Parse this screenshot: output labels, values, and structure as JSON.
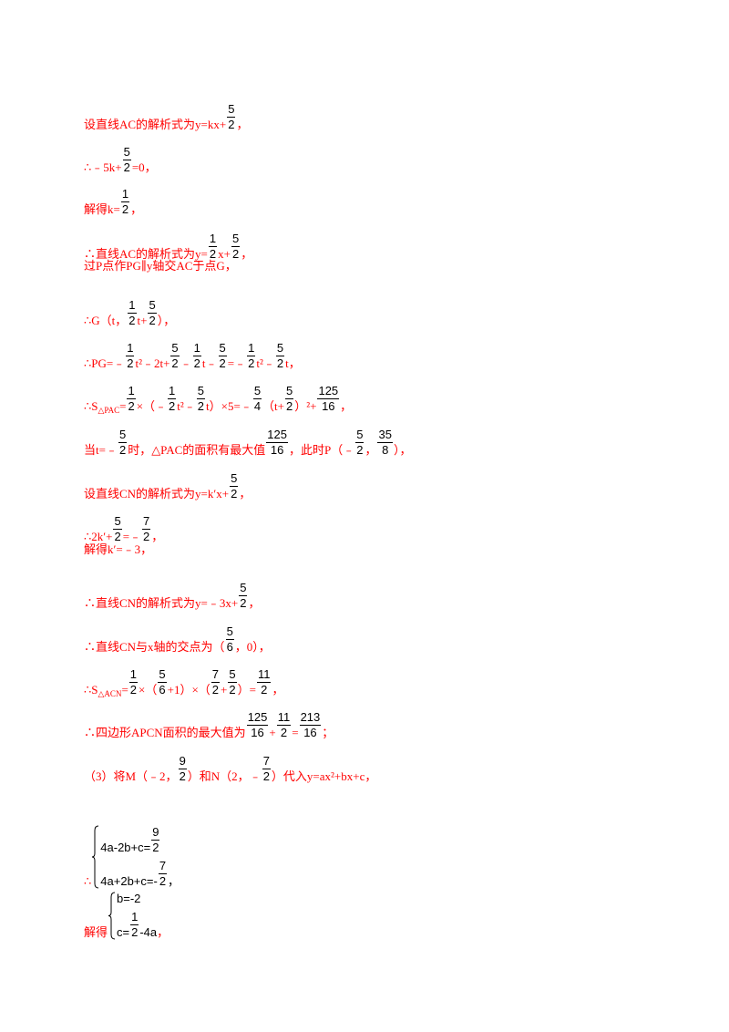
{
  "lines": [
    [
      "设直线AC的解析式为y=kx+",
      {
        "num": "5",
        "den": "2"
      },
      "，"
    ],
    [
      "∴﹣5k+",
      {
        "num": "5",
        "den": "2"
      },
      "=0，"
    ],
    [
      "解得k=",
      {
        "num": "1",
        "den": "2"
      },
      "，"
    ],
    [
      "∴直线AC的解析式为y=",
      {
        "num": "1",
        "den": "2"
      },
      "x+",
      {
        "num": "5",
        "den": "2"
      },
      "，"
    ],
    [
      "过P点作PG∥y轴交AC于点G，"
    ],
    [
      "∴G（t，",
      {
        "num": "1",
        "den": "2"
      },
      "t+",
      {
        "num": "5",
        "den": "2"
      },
      "），"
    ],
    [
      "∴PG=﹣",
      {
        "num": "1",
        "den": "2"
      },
      "t²﹣2t+",
      {
        "num": "5",
        "den": "2"
      },
      "﹣",
      {
        "num": "1",
        "den": "2"
      },
      "t﹣",
      {
        "num": "5",
        "den": "2"
      },
      "=﹣",
      {
        "num": "1",
        "den": "2"
      },
      "t²﹣",
      {
        "num": "5",
        "den": "2"
      },
      "t，"
    ],
    [
      "∴S",
      {
        "sub": "△PAC"
      },
      "=",
      {
        "num": "1",
        "den": "2"
      },
      "×（﹣",
      {
        "num": "1",
        "den": "2"
      },
      "t²﹣",
      {
        "num": "5",
        "den": "2"
      },
      "t）×5=﹣",
      {
        "num": "5",
        "den": "4"
      },
      "（t+",
      {
        "num": "5",
        "den": "2"
      },
      "）²+",
      {
        "num": "125",
        "den": "16"
      },
      "，"
    ],
    [
      "当t=﹣",
      {
        "num": "5",
        "den": "2"
      },
      "时，△PAC的面积有最大值",
      {
        "num": "125",
        "den": "16"
      },
      "，此时P（﹣",
      {
        "num": "5",
        "den": "2"
      },
      "，",
      {
        "num": "35",
        "den": "8"
      },
      "），"
    ],
    [
      "设直线CN的解析式为y=k′x+",
      {
        "num": "5",
        "den": "2"
      },
      "，"
    ],
    [
      "∴2k′+",
      {
        "num": "5",
        "den": "2"
      },
      "=﹣",
      {
        "num": "7",
        "den": "2"
      },
      "，"
    ],
    [
      "解得k′=﹣3，"
    ],
    [
      "∴直线CN的解析式为y=﹣3x+",
      {
        "num": "5",
        "den": "2"
      },
      "，"
    ],
    [
      "∴直线CN与x轴的交点为（",
      {
        "num": "5",
        "den": "6"
      },
      "，0），"
    ],
    [
      "∴S",
      {
        "sub": "△ACN"
      },
      "=",
      {
        "num": "1",
        "den": "2"
      },
      "×（",
      {
        "num": "5",
        "den": "6"
      },
      "+1）×（",
      {
        "num": "7",
        "den": "2"
      },
      "+",
      {
        "num": "5",
        "den": "2"
      },
      "）=",
      {
        "num": "11",
        "den": "2"
      },
      "，"
    ],
    [
      "∴四边形APCN面积的最大值为",
      {
        "num": "125",
        "den": "16"
      },
      "+",
      {
        "num": "11",
        "den": "2"
      },
      "=",
      {
        "num": "213",
        "den": "16"
      },
      "；"
    ],
    [
      "（3）将M（﹣2，",
      {
        "num": "9",
        "den": "2"
      },
      "）和N（2，﹣",
      {
        "num": "7",
        "den": "2"
      },
      "）代入y=ax²+bx+c，"
    ],
    [
      "∴",
      {
        "system": [
          [
            "4a-2b+c=",
            {
              "num": "9",
              "den": "2"
            }
          ],
          [
            "4a+2b+c=-",
            {
              "num": "7",
              "den": "2"
            },
            "，"
          ]
        ]
      }
    ],
    [
      "解得",
      {
        "system": [
          [
            "b=-2"
          ],
          [
            "c=",
            {
              "num": "1",
              "den": "2"
            },
            "-4a"
          ]
        ]
      },
      "，"
    ]
  ]
}
